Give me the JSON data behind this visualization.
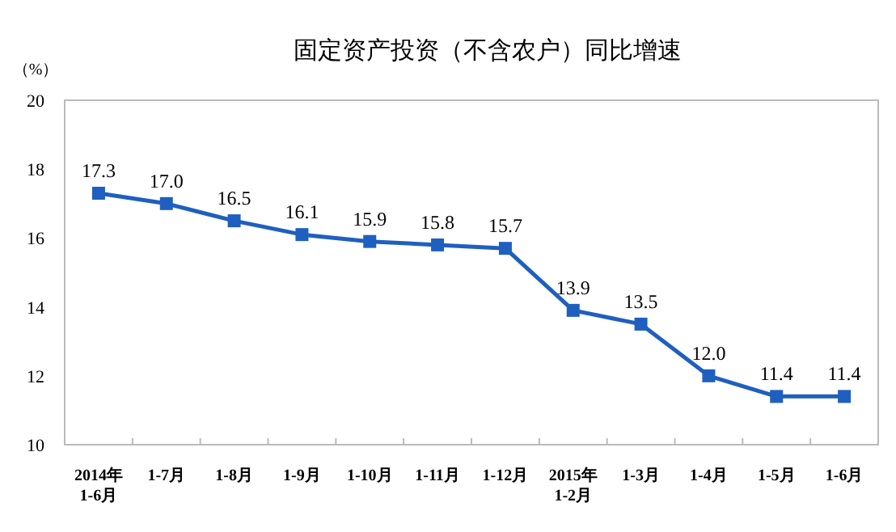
{
  "chart_data": {
    "type": "line",
    "title": "固定资产投资（不含农户）同比增速",
    "ylabel": "（%）",
    "categories": [
      "2014年\n1-6月",
      "1-7月",
      "1-8月",
      "1-9月",
      "1-10月",
      "1-11月",
      "1-12月",
      "2015年\n1-2月",
      "1-3月",
      "1-4月",
      "1-5月",
      "1-6月"
    ],
    "series": [
      {
        "color": "#1f5fbf",
        "values": [
          17.3,
          17.0,
          16.5,
          16.1,
          15.9,
          15.8,
          15.7,
          13.9,
          13.5,
          12.0,
          11.4,
          11.4
        ],
        "value_labels": [
          "17.3",
          "17.0",
          "16.5",
          "16.1",
          "15.9",
          "15.8",
          "15.7",
          "13.9",
          "13.5",
          "12.0",
          "11.4",
          "11.4"
        ]
      }
    ],
    "ylim": [
      10,
      20
    ],
    "yticks": [
      10,
      12,
      14,
      16,
      18,
      20
    ],
    "marker": "square",
    "grid": false
  }
}
